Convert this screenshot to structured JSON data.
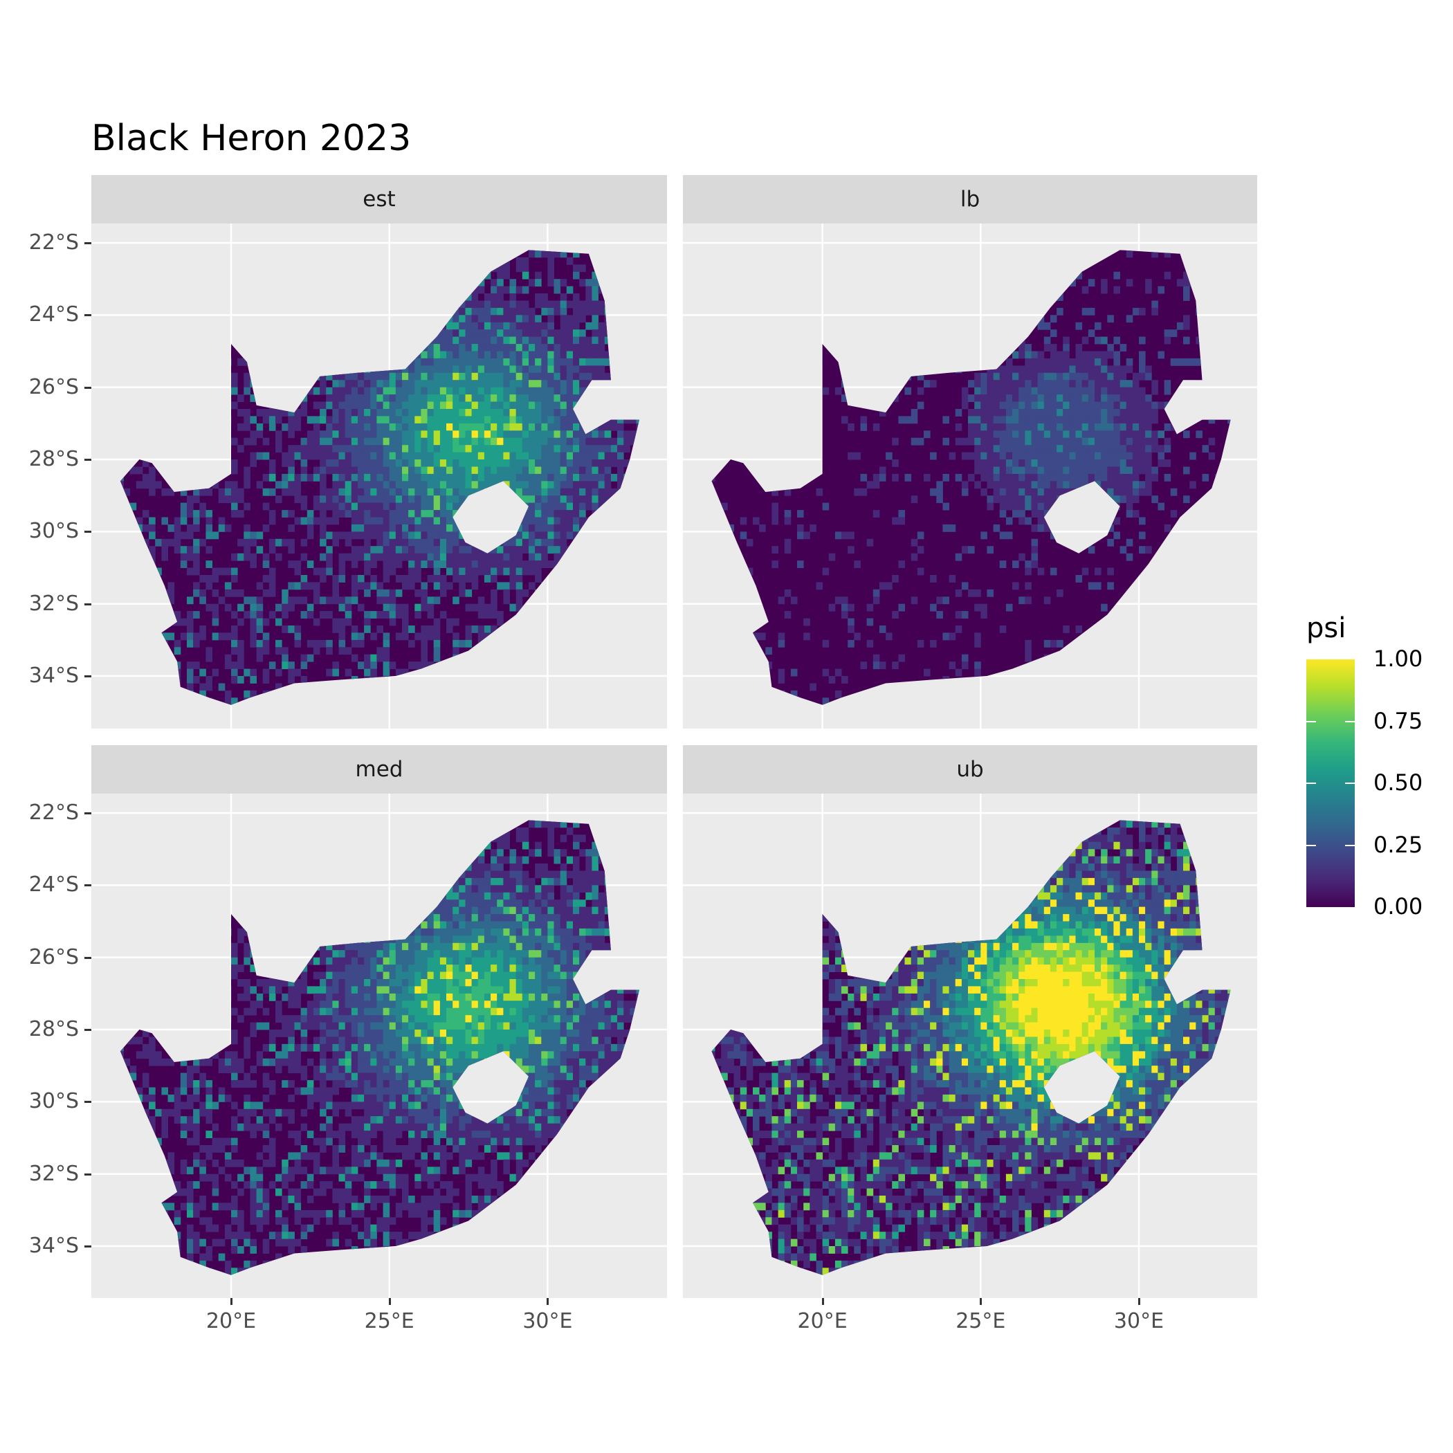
{
  "title": "Black Heron 2023",
  "chart_data": {
    "type": "heatmap",
    "title": "Black Heron 2023",
    "facets": [
      "est",
      "lb",
      "med",
      "ub"
    ],
    "x_ticks": [
      "20°E",
      "25°E",
      "30°E"
    ],
    "x_tick_values": [
      20,
      25,
      30
    ],
    "y_ticks": [
      "22°S",
      "24°S",
      "26°S",
      "28°S",
      "30°S",
      "32°S",
      "34°S"
    ],
    "y_tick_values": [
      -22,
      -24,
      -26,
      -28,
      -30,
      -32,
      -34
    ],
    "xlim": [
      15.6,
      33.8
    ],
    "ylim": [
      -35.5,
      -21.5
    ],
    "grid": true,
    "legend": {
      "title": "psi",
      "ticks": [
        "1.00",
        "0.75",
        "0.50",
        "0.25",
        "0.00"
      ],
      "tick_values": [
        1,
        0.75,
        0.5,
        0.25,
        0
      ],
      "palette": "viridis",
      "placement": "right"
    }
  }
}
